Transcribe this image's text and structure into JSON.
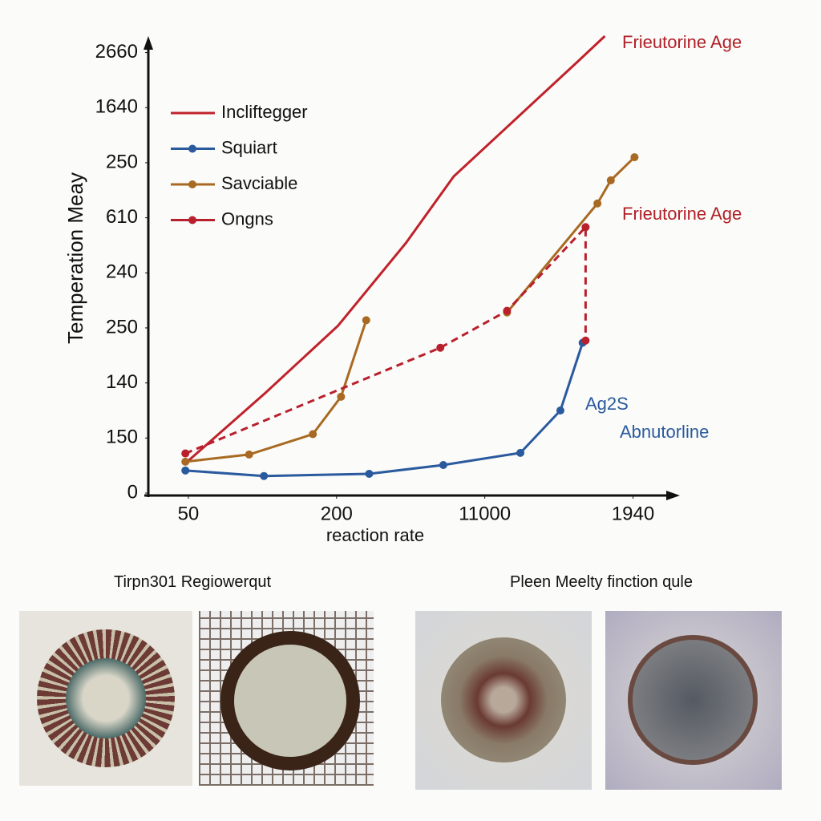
{
  "chart_data": {
    "type": "line",
    "x_label": "reaction rate",
    "y_label": "Temperation Meay",
    "xlim": [
      -0.27,
      3.3
    ],
    "xticks": [
      {
        "value": 0,
        "label": "50"
      },
      {
        "value": 1,
        "label": "200"
      },
      {
        "value": 2,
        "label": "11000"
      },
      {
        "value": 3,
        "label": "1940"
      }
    ],
    "ylim": [
      0,
      8.3
    ],
    "yticks": [
      {
        "value": 0,
        "label": "0"
      },
      {
        "value": 1,
        "label": "150"
      },
      {
        "value": 2,
        "label": "140"
      },
      {
        "value": 3,
        "label": "250"
      },
      {
        "value": 4,
        "label": "240"
      },
      {
        "value": 5,
        "label": "610"
      },
      {
        "value": 6,
        "label": "250"
      },
      {
        "value": 7,
        "label": "1640"
      },
      {
        "value": 8,
        "label": "2660"
      }
    ],
    "legend": "top-left",
    "series": [
      {
        "name": "Incliftegger",
        "color": "#c0222b",
        "marker": false,
        "dash": false,
        "x": [
          -0.02,
          0.52,
          1.01,
          1.47,
          1.79,
          2.62,
          2.81
        ],
        "values": [
          0.54,
          1.82,
          3.04,
          4.55,
          5.75,
          7.82,
          8.3
        ]
      },
      {
        "name": "Squiart",
        "color": "#2a5a9e",
        "marker": true,
        "dash": false,
        "x": [
          -0.02,
          0.51,
          1.22,
          1.72,
          2.24,
          2.51,
          2.66
        ],
        "values": [
          0.41,
          0.31,
          0.35,
          0.51,
          0.73,
          1.5,
          2.73
        ]
      },
      {
        "name": "Savciable",
        "color": "#a86a22",
        "marker": true,
        "dash": false,
        "x": [
          -0.02,
          0.41,
          0.84,
          1.03,
          1.2,
          null,
          2.15,
          2.76,
          2.85,
          3.01
        ],
        "values": [
          0.57,
          0.7,
          1.07,
          1.75,
          3.14,
          null,
          3.28,
          5.26,
          5.68,
          6.1
        ]
      },
      {
        "name": "Ongns",
        "color": "#b8202e",
        "marker": true,
        "dash": true,
        "x": [
          -0.02,
          1.7,
          2.15,
          2.68,
          2.68
        ],
        "values": [
          0.72,
          2.64,
          3.31,
          4.83,
          2.77
        ]
      }
    ],
    "annotations": [
      "Frieutorine Age",
      "Frieutorine Age",
      "Ag2S",
      "Abnutorline"
    ]
  },
  "panels": [
    "Tirpn301 Regiowerqut",
    "Pleen Meelty finction ɋule"
  ]
}
